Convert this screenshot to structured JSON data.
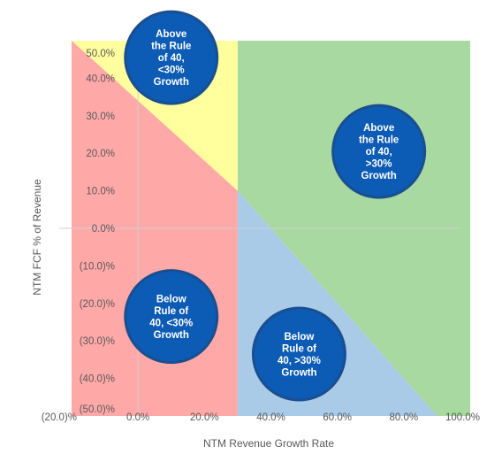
{
  "chart_data": {
    "type": "quadrant",
    "xlabel": "NTM Revenue Growth Rate",
    "ylabel": "NTM FCF % of Revenue",
    "xlim": [
      -20,
      100
    ],
    "ylim": [
      -50,
      50
    ],
    "x_ticks": [
      {
        "value": -20,
        "label": "(20.0)%"
      },
      {
        "value": 0,
        "label": "0.0%"
      },
      {
        "value": 20,
        "label": "20.0%"
      },
      {
        "value": 40,
        "label": "40.0%"
      },
      {
        "value": 60,
        "label": "60.0%"
      },
      {
        "value": 80,
        "label": "80.0%"
      },
      {
        "value": 100,
        "label": "100.0%"
      }
    ],
    "y_ticks": [
      {
        "value": 50,
        "label": "50.0%"
      },
      {
        "value": 40,
        "label": "40.0%"
      },
      {
        "value": 30,
        "label": "30.0%"
      },
      {
        "value": 20,
        "label": "20.0%"
      },
      {
        "value": 10,
        "label": "10.0%"
      },
      {
        "value": 0,
        "label": "0.0%"
      },
      {
        "value": -10,
        "label": "(10.0)%"
      },
      {
        "value": -20,
        "label": "(20.0)%"
      },
      {
        "value": -30,
        "label": "(30.0)%"
      },
      {
        "value": -40,
        "label": "(40.0)%"
      },
      {
        "value": -50,
        "label": "(50.0)%"
      }
    ],
    "growth_threshold": 30,
    "rule_of": 40,
    "regions": [
      {
        "key": "below_low",
        "color": "#ffa8a8",
        "polygon": [
          [
            -20,
            -50
          ],
          [
            30,
            -50
          ],
          [
            30,
            10
          ],
          [
            -20,
            60
          ]
        ]
      },
      {
        "key": "above_low",
        "color": "#ffff9e",
        "polygon": [
          [
            -20,
            50
          ],
          [
            30,
            50
          ],
          [
            30,
            10
          ]
        ]
      },
      {
        "key": "above_high",
        "color": "#a8d9a0",
        "polygon": [
          [
            30,
            50
          ],
          [
            100,
            50
          ],
          [
            100,
            -60
          ],
          [
            30,
            10
          ]
        ]
      },
      {
        "key": "below_high",
        "color": "#a9cbe8",
        "polygon": [
          [
            30,
            10
          ],
          [
            100,
            -60
          ],
          [
            30,
            -60
          ]
        ]
      }
    ],
    "labels": [
      {
        "key": "above_low",
        "x": 10,
        "y": 45.5,
        "lines": [
          "Above",
          "the Rule",
          "of 40,",
          "<30%",
          "Growth"
        ]
      },
      {
        "key": "above_high",
        "x": 72.5,
        "y": 20.5,
        "lines": [
          "Above",
          "the Rule",
          "of 40,",
          ">30%",
          "Growth"
        ]
      },
      {
        "key": "below_low",
        "x": 10,
        "y": -23.5,
        "lines": [
          "Below",
          "Rule of",
          "40, <30%",
          "Growth"
        ]
      },
      {
        "key": "below_high",
        "x": 48.5,
        "y": -33.5,
        "lines": [
          "Below",
          "Rule of",
          "40, >30%",
          "Growth"
        ]
      }
    ],
    "bubble_color": "#0c5bb4",
    "bubble_border": "#1a4f8f",
    "grid": false
  }
}
